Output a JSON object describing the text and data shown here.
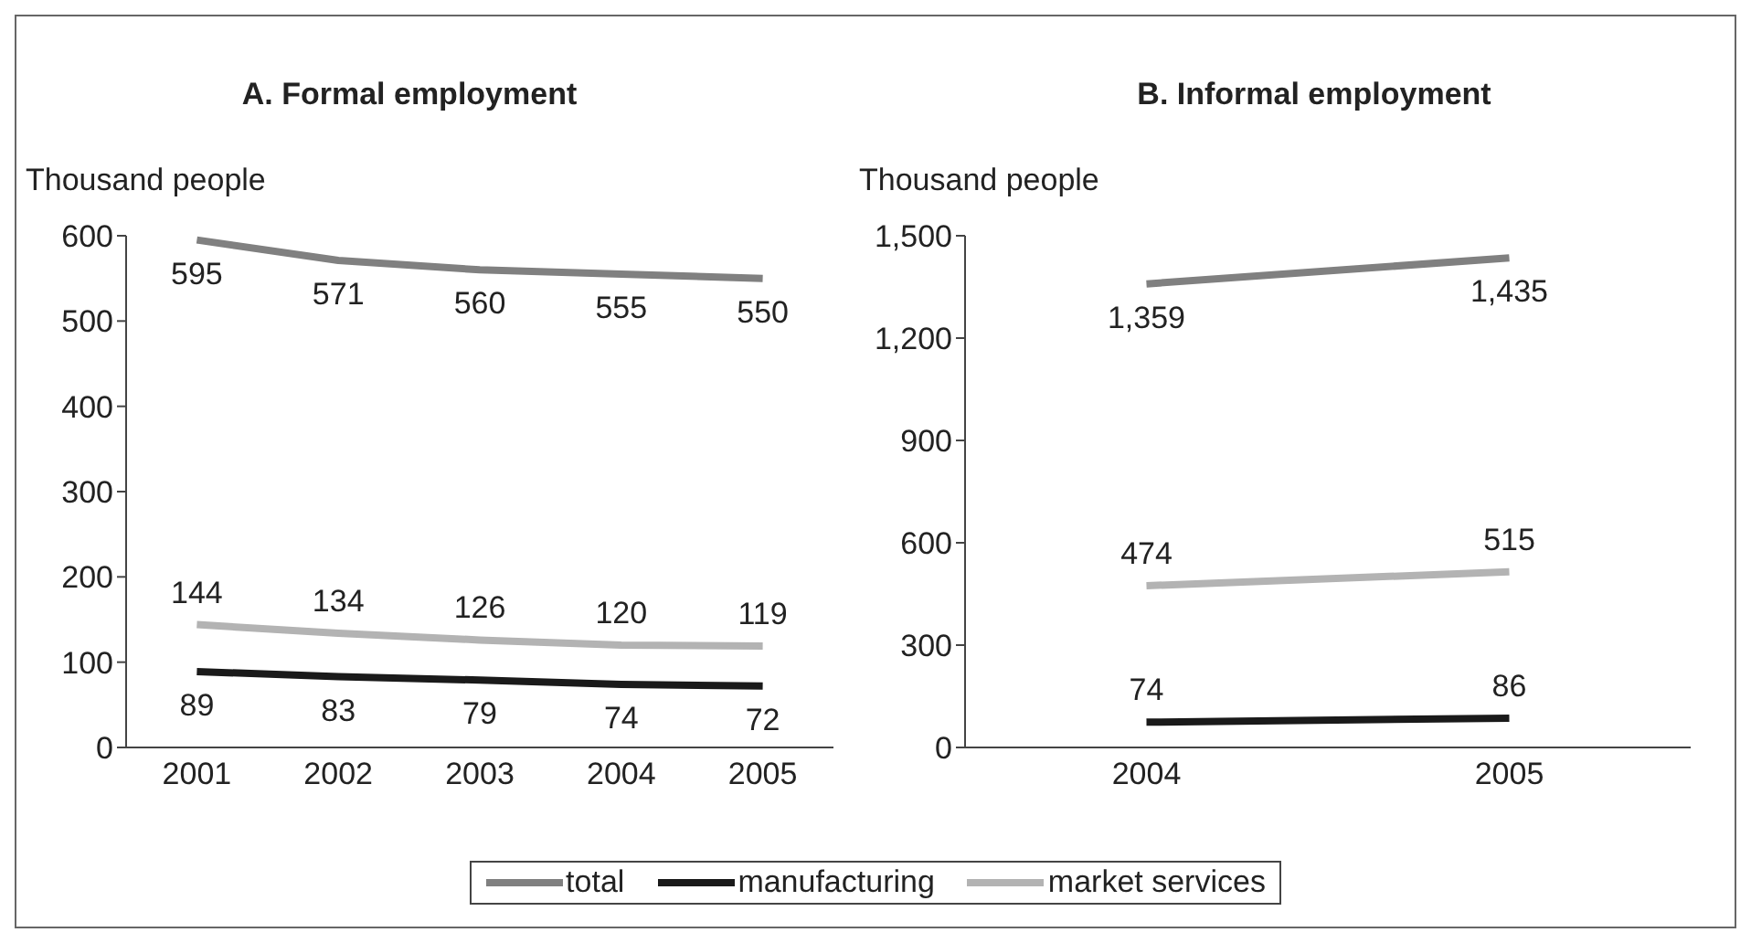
{
  "chart_data": [
    {
      "type": "line",
      "title": "A. Formal employment",
      "ylabel": "Thousand people",
      "categories": [
        "2001",
        "2002",
        "2003",
        "2004",
        "2005"
      ],
      "series": [
        {
          "name": "total",
          "color": "#808080",
          "values": [
            595,
            571,
            560,
            555,
            550
          ]
        },
        {
          "name": "manufacturing",
          "color": "#1a1a1a",
          "values": [
            89,
            83,
            79,
            74,
            72
          ]
        },
        {
          "name": "market services",
          "color": "#b3b3b3",
          "values": [
            144,
            134,
            126,
            120,
            119
          ]
        }
      ],
      "ylim": [
        0,
        600
      ],
      "yticks": [
        0,
        100,
        200,
        300,
        400,
        500,
        600
      ],
      "data_labels": true,
      "legend": "bottom"
    },
    {
      "type": "line",
      "title": "B. Informal employment",
      "ylabel": "Thousand people",
      "categories": [
        "2004",
        "2005"
      ],
      "series": [
        {
          "color": "#808080",
          "values": [
            1359,
            1435
          ],
          "value_labels": [
            "1,359",
            "1,435"
          ]
        },
        {
          "color": "#1a1a1a",
          "values": [
            74,
            86
          ],
          "value_labels": [
            "74",
            "86"
          ]
        },
        {
          "color": "#b3b3b3",
          "values": [
            474,
            515
          ],
          "value_labels": [
            "474",
            "515"
          ]
        }
      ],
      "ylim": [
        0,
        1500
      ],
      "yticks": [
        0,
        {
          "value": 300,
          "label": "300"
        },
        {
          "value": 600,
          "label": "600"
        },
        {
          "value": 900,
          "label": "900"
        },
        {
          "value": 1200,
          "label": "1,200"
        },
        {
          "value": 1500,
          "label": "1,500"
        }
      ]
    }
  ]
}
